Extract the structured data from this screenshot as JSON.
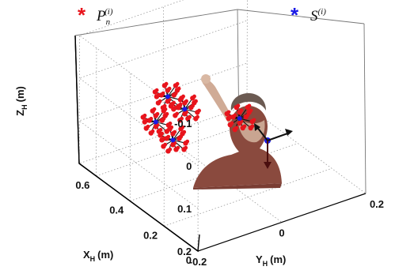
{
  "chart_data": {
    "type": "scatter",
    "title": "",
    "legend": {
      "placement": "top",
      "entries": [
        {
          "marker": "*",
          "color": "#e8141c",
          "symbol": "P",
          "subscript": "n",
          "superscript": "(i)"
        },
        {
          "marker": "*",
          "color": "#1a1ae6",
          "symbol": "S",
          "subscript": "",
          "superscript": "(i)"
        }
      ]
    },
    "axes": {
      "x": {
        "label": "X",
        "label_sub": "H",
        "unit": "(m)",
        "ticks": [
          "0",
          "0.2",
          "0.4",
          "0.6"
        ],
        "range": [
          0,
          0.7
        ]
      },
      "y": {
        "label": "Y",
        "label_sub": "H",
        "unit": "(m)",
        "ticks": [
          "-0.2",
          "0",
          "0.2"
        ],
        "range": [
          -0.2,
          0.2
        ]
      },
      "z": {
        "label": "Z",
        "label_sub": "H",
        "unit": "(m)",
        "ticks": [
          "-0.1",
          "0",
          "0.1",
          "0.2"
        ],
        "range": [
          -0.1,
          0.2
        ],
        "reversed": true
      }
    },
    "grid": true,
    "series": [
      {
        "name": "P_n^(i)",
        "color": "#e8141c",
        "clusters": [
          {
            "x": 0.55,
            "y": -0.05,
            "z": 0.05
          },
          {
            "x": 0.45,
            "y": -0.05,
            "z": 0.05
          },
          {
            "x": 0.42,
            "y": -0.09,
            "z": 0.1
          },
          {
            "x": 0.62,
            "y": -0.05,
            "z": 0.13
          },
          {
            "x": 0.25,
            "y": 0.0,
            "z": 0.03
          }
        ]
      },
      {
        "name": "S^(i)",
        "color": "#1a1ae6",
        "points": [
          {
            "x": 0.55,
            "y": -0.05,
            "z": 0.05
          },
          {
            "x": 0.45,
            "y": -0.05,
            "z": 0.05
          },
          {
            "x": 0.42,
            "y": -0.09,
            "z": 0.1
          },
          {
            "x": 0.62,
            "y": -0.05,
            "z": 0.13
          },
          {
            "x": 0.25,
            "y": 0.0,
            "z": 0.03
          }
        ]
      }
    ]
  }
}
